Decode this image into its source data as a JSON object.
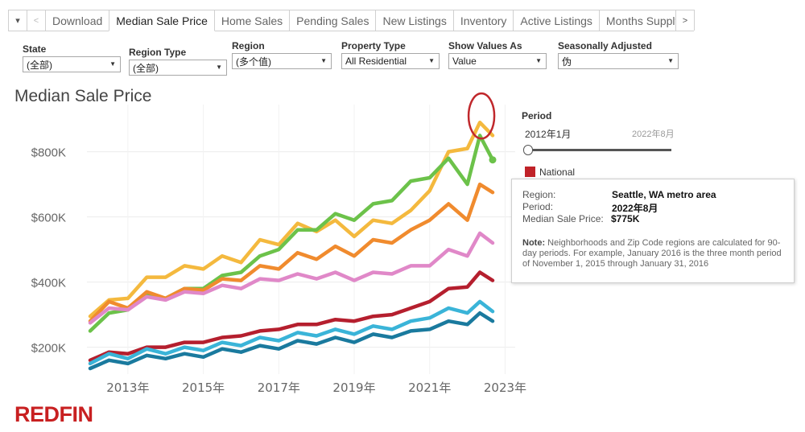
{
  "tabs": {
    "menu_glyph": "▾",
    "prev_glyph": "<",
    "next_glyph": ">",
    "items": [
      "Download",
      "Median Sale Price",
      "Home Sales",
      "Pending Sales",
      "New Listings",
      "Inventory",
      "Active Listings",
      "Months Supply"
    ],
    "active": "Median Sale Price"
  },
  "filters": {
    "state": {
      "label": "State",
      "value": "(全部)"
    },
    "region_type": {
      "label": "Region Type",
      "value": "(全部)"
    },
    "region": {
      "label": "Region",
      "value": "(多个值)"
    },
    "property_type": {
      "label": "Property Type",
      "value": "All Residential"
    },
    "show_values_as": {
      "label": "Show Values As",
      "value": "Value"
    },
    "seasonally_adjusted": {
      "label": "Seasonally Adjusted",
      "value": "伪"
    }
  },
  "chart_title": "Median Sale Price",
  "period": {
    "label": "Period",
    "start": "2012年1月",
    "end": "2022年8月",
    "slider_position": 0
  },
  "legend": {
    "label": "National",
    "color": "#c02228"
  },
  "tooltip": {
    "region_label": "Region:",
    "region_value": "Seattle, WA metro area",
    "period_label": "Period:",
    "period_value": "2022年8月",
    "price_label": "Median Sale Price:",
    "price_value": "$775K",
    "note_label": "Note:",
    "note_text": "Neighborhoods and Zip Code regions are calculated for 90-day periods.  For example, January 2016 is the three month period of November 1, 2015 through January 31, 2016"
  },
  "logo": "REDFIN",
  "chart_data": {
    "type": "line",
    "y_ticks": [
      "$200K",
      "$400K",
      "$600K",
      "$800K"
    ],
    "x_ticks": [
      "2013年",
      "2015年",
      "2017年",
      "2019年",
      "2021年",
      "2023年"
    ],
    "xlim": [
      2012.0,
      2022.67
    ],
    "ylim": [
      130,
      920
    ],
    "y_unit": "$K",
    "x": [
      2012.0,
      2012.5,
      2013.0,
      2013.5,
      2014.0,
      2014.5,
      2015.0,
      2015.5,
      2016.0,
      2016.5,
      2017.0,
      2017.5,
      2018.0,
      2018.5,
      2019.0,
      2019.5,
      2020.0,
      2020.5,
      2021.0,
      2021.5,
      2022.0,
      2022.33,
      2022.67
    ],
    "series": [
      {
        "color": "#f4b93e",
        "values": [
          295,
          345,
          350,
          415,
          415,
          450,
          440,
          480,
          460,
          530,
          515,
          580,
          555,
          590,
          540,
          590,
          580,
          620,
          680,
          800,
          810,
          890,
          850
        ]
      },
      {
        "color": "#6cc24a",
        "values": [
          250,
          305,
          315,
          360,
          350,
          380,
          380,
          420,
          430,
          480,
          500,
          560,
          560,
          610,
          590,
          640,
          650,
          710,
          720,
          780,
          700,
          850,
          775
        ]
      },
      {
        "color": "#f08b2e",
        "values": [
          280,
          340,
          320,
          370,
          350,
          380,
          375,
          410,
          405,
          450,
          440,
          490,
          470,
          510,
          480,
          530,
          520,
          560,
          590,
          640,
          590,
          700,
          675
        ]
      },
      {
        "color": "#e088c8",
        "values": [
          275,
          320,
          315,
          355,
          345,
          370,
          365,
          390,
          380,
          410,
          405,
          425,
          410,
          430,
          405,
          430,
          425,
          450,
          450,
          500,
          480,
          550,
          520
        ]
      },
      {
        "color": "#b51f2e",
        "values": [
          160,
          185,
          180,
          200,
          200,
          215,
          215,
          230,
          235,
          250,
          255,
          270,
          270,
          285,
          280,
          295,
          300,
          320,
          340,
          380,
          385,
          430,
          405
        ]
      },
      {
        "color": "#3ab4d8",
        "values": [
          150,
          180,
          165,
          195,
          180,
          200,
          190,
          215,
          205,
          230,
          220,
          245,
          235,
          255,
          240,
          265,
          255,
          280,
          290,
          320,
          305,
          340,
          310
        ]
      },
      {
        "color": "#1a7a9e",
        "values": [
          135,
          160,
          150,
          175,
          165,
          180,
          170,
          195,
          185,
          205,
          195,
          220,
          210,
          230,
          215,
          240,
          230,
          250,
          255,
          280,
          270,
          305,
          280
        ]
      }
    ]
  }
}
